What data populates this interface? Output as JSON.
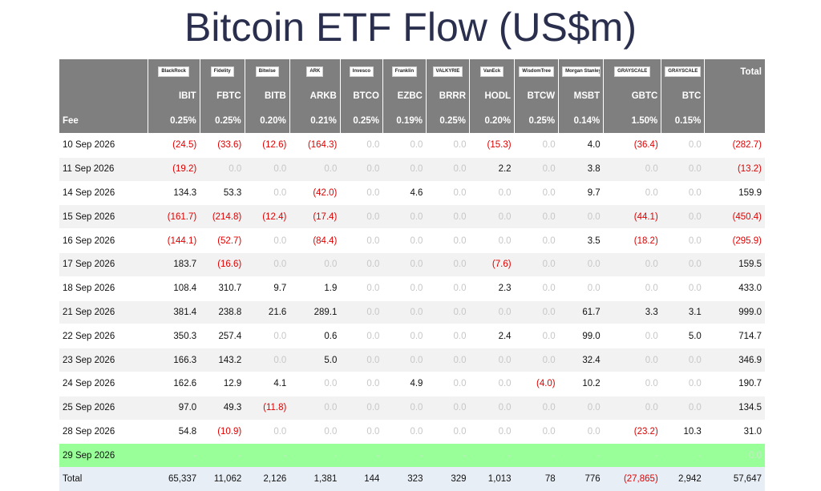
{
  "title": "Bitcoin ETF Flow (US$m)",
  "logos": [
    "BlackRock",
    "Fidelity",
    "Bitwise",
    "ARK",
    "Invesco",
    "Franklin",
    "VALKYRIE",
    "VanEck",
    "WisdomTree",
    "Morgan Stanley",
    "GRAYSCALE",
    "GRAYSCALE"
  ],
  "total_header": "Total",
  "tickers": [
    "IBIT",
    "FBTC",
    "BITB",
    "ARKB",
    "BTCO",
    "EZBC",
    "BRRR",
    "HODL",
    "BTCW",
    "MSBT",
    "GBTC",
    "BTC"
  ],
  "fee_label": "Fee",
  "fees": [
    "0.25%",
    "0.25%",
    "0.20%",
    "0.21%",
    "0.25%",
    "0.19%",
    "0.25%",
    "0.20%",
    "0.25%",
    "0.14%",
    "1.50%",
    "0.15%"
  ],
  "rows": [
    [
      "10 Sep 2026",
      "(24.5)",
      "(33.6)",
      "(12.6)",
      "(164.3)",
      "0.0",
      "0.0",
      "0.0",
      "(15.3)",
      "0.0",
      "4.0",
      "(36.4)",
      "0.0",
      "(282.7)"
    ],
    [
      "11 Sep 2026",
      "(19.2)",
      "0.0",
      "0.0",
      "0.0",
      "0.0",
      "0.0",
      "0.0",
      "2.2",
      "0.0",
      "3.8",
      "0.0",
      "0.0",
      "(13.2)"
    ],
    [
      "14 Sep 2026",
      "134.3",
      "53.3",
      "0.0",
      "(42.0)",
      "0.0",
      "4.6",
      "0.0",
      "0.0",
      "0.0",
      "9.7",
      "0.0",
      "0.0",
      "159.9"
    ],
    [
      "15 Sep 2026",
      "(161.7)",
      "(214.8)",
      "(12.4)",
      "(17.4)",
      "0.0",
      "0.0",
      "0.0",
      "0.0",
      "0.0",
      "0.0",
      "(44.1)",
      "0.0",
      "(450.4)"
    ],
    [
      "16 Sep 2026",
      "(144.1)",
      "(52.7)",
      "0.0",
      "(84.4)",
      "0.0",
      "0.0",
      "0.0",
      "0.0",
      "0.0",
      "3.5",
      "(18.2)",
      "0.0",
      "(295.9)"
    ],
    [
      "17 Sep 2026",
      "183.7",
      "(16.6)",
      "0.0",
      "0.0",
      "0.0",
      "0.0",
      "0.0",
      "(7.6)",
      "0.0",
      "0.0",
      "0.0",
      "0.0",
      "159.5"
    ],
    [
      "18 Sep 2026",
      "108.4",
      "310.7",
      "9.7",
      "1.9",
      "0.0",
      "0.0",
      "0.0",
      "2.3",
      "0.0",
      "0.0",
      "0.0",
      "0.0",
      "433.0"
    ],
    [
      "21 Sep 2026",
      "381.4",
      "238.8",
      "21.6",
      "289.1",
      "0.0",
      "0.0",
      "0.0",
      "0.0",
      "0.0",
      "61.7",
      "3.3",
      "3.1",
      "999.0"
    ],
    [
      "22 Sep 2026",
      "350.3",
      "257.4",
      "0.0",
      "0.6",
      "0.0",
      "0.0",
      "0.0",
      "2.4",
      "0.0",
      "99.0",
      "0.0",
      "5.0",
      "714.7"
    ],
    [
      "23 Sep 2026",
      "166.3",
      "143.2",
      "0.0",
      "5.0",
      "0.0",
      "0.0",
      "0.0",
      "0.0",
      "0.0",
      "32.4",
      "0.0",
      "0.0",
      "346.9"
    ],
    [
      "24 Sep 2026",
      "162.6",
      "12.9",
      "4.1",
      "0.0",
      "0.0",
      "4.9",
      "0.0",
      "0.0",
      "(4.0)",
      "10.2",
      "0.0",
      "0.0",
      "190.7"
    ],
    [
      "25 Sep 2026",
      "97.0",
      "49.3",
      "(11.8)",
      "0.0",
      "0.0",
      "0.0",
      "0.0",
      "0.0",
      "0.0",
      "0.0",
      "0.0",
      "0.0",
      "134.5"
    ],
    [
      "28 Sep 2026",
      "54.8",
      "(10.9)",
      "0.0",
      "0.0",
      "0.0",
      "0.0",
      "0.0",
      "0.0",
      "0.0",
      "0.0",
      "(23.2)",
      "10.3",
      "31.0"
    ],
    [
      "29 Sep 2026",
      "-",
      "-",
      "-",
      "-",
      "-",
      "-",
      "-",
      "-",
      "-",
      "-",
      "-",
      "-",
      "0.0"
    ]
  ],
  "highlight_row": "29 Sep 2026",
  "total_label": "Total",
  "totals": [
    "65,337",
    "11,062",
    "2,126",
    "1,381",
    "144",
    "323",
    "329",
    "1,013",
    "78",
    "776",
    "(27,865)",
    "2,942",
    "57,647"
  ],
  "colors": {
    "header_bg": "#7f7f7f",
    "negative": "#e00000",
    "zero": "#c7c7c7",
    "highlight": "#99ff99",
    "total_bg": "#e8eef6",
    "title": "#2b2f4e"
  }
}
